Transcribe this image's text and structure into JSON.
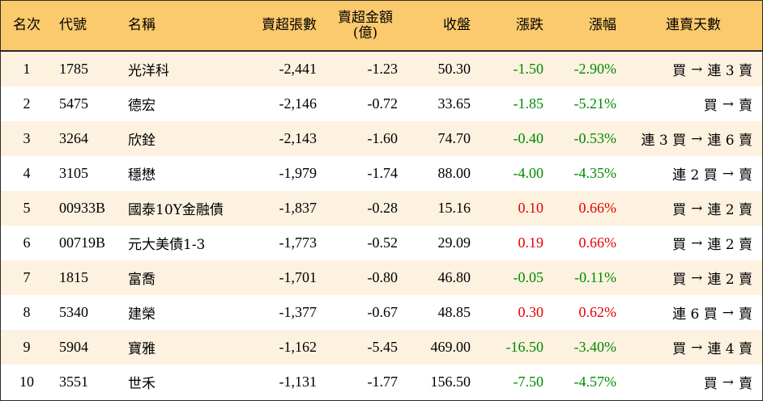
{
  "header": {
    "rank": "名次",
    "code": "代號",
    "name": "名稱",
    "net_sell_shares": "賣超張數",
    "net_sell_amount_line1": "賣超金額",
    "net_sell_amount_line2": "(億)",
    "close": "收盤",
    "change": "漲跌",
    "change_pct": "漲幅",
    "streak": "連賣天數"
  },
  "colors": {
    "header_bg": "#fbca6c",
    "stripe_bg": "#fdf2e0",
    "up": "#e40000",
    "down": "#008a00"
  },
  "rows": [
    {
      "rank": "1",
      "code": "1785",
      "name": "光洋科",
      "shares": "-2,441",
      "amount": "-1.23",
      "close": "50.30",
      "change": "-1.50",
      "pct": "-2.90%",
      "dir": "down",
      "from": "買",
      "to": "連 3 賣"
    },
    {
      "rank": "2",
      "code": "5475",
      "name": "德宏",
      "shares": "-2,146",
      "amount": "-0.72",
      "close": "33.65",
      "change": "-1.85",
      "pct": "-5.21%",
      "dir": "down",
      "from": "買",
      "to": "賣"
    },
    {
      "rank": "3",
      "code": "3264",
      "name": "欣銓",
      "shares": "-2,143",
      "amount": "-1.60",
      "close": "74.70",
      "change": "-0.40",
      "pct": "-0.53%",
      "dir": "down",
      "from": "連 3 買",
      "to": "連 6 賣"
    },
    {
      "rank": "4",
      "code": "3105",
      "name": "穩懋",
      "shares": "-1,979",
      "amount": "-1.74",
      "close": "88.00",
      "change": "-4.00",
      "pct": "-4.35%",
      "dir": "down",
      "from": "連 2 買",
      "to": "賣"
    },
    {
      "rank": "5",
      "code": "00933B",
      "name": "國泰10Y金融債",
      "shares": "-1,837",
      "amount": "-0.28",
      "close": "15.16",
      "change": "0.10",
      "pct": "0.66%",
      "dir": "up",
      "from": "買",
      "to": "連 2 賣"
    },
    {
      "rank": "6",
      "code": "00719B",
      "name": "元大美債1-3",
      "shares": "-1,773",
      "amount": "-0.52",
      "close": "29.09",
      "change": "0.19",
      "pct": "0.66%",
      "dir": "up",
      "from": "買",
      "to": "連 2 賣"
    },
    {
      "rank": "7",
      "code": "1815",
      "name": "富喬",
      "shares": "-1,701",
      "amount": "-0.80",
      "close": "46.80",
      "change": "-0.05",
      "pct": "-0.11%",
      "dir": "down",
      "from": "買",
      "to": "連 2 賣"
    },
    {
      "rank": "8",
      "code": "5340",
      "name": "建榮",
      "shares": "-1,377",
      "amount": "-0.67",
      "close": "48.85",
      "change": "0.30",
      "pct": "0.62%",
      "dir": "up",
      "from": "連 6 買",
      "to": "賣"
    },
    {
      "rank": "9",
      "code": "5904",
      "name": "寶雅",
      "shares": "-1,162",
      "amount": "-5.45",
      "close": "469.00",
      "change": "-16.50",
      "pct": "-3.40%",
      "dir": "down",
      "from": "買",
      "to": "連 4 賣"
    },
    {
      "rank": "10",
      "code": "3551",
      "name": "世禾",
      "shares": "-1,131",
      "amount": "-1.77",
      "close": "156.50",
      "change": "-7.50",
      "pct": "-4.57%",
      "dir": "down",
      "from": "買",
      "to": "賣"
    }
  ],
  "arrow_glyph": "→"
}
